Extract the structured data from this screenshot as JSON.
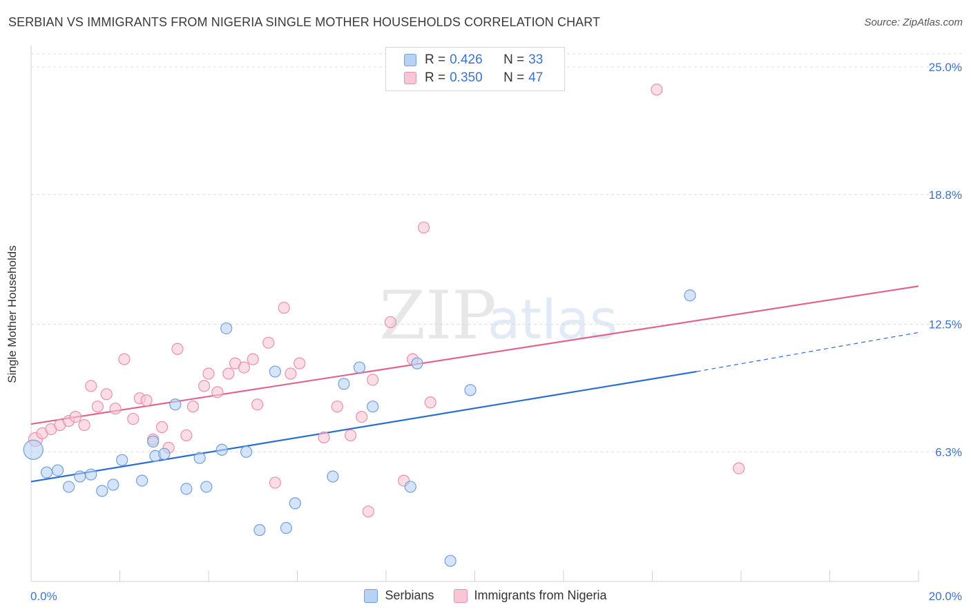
{
  "header": {
    "title": "SERBIAN VS IMMIGRANTS FROM NIGERIA SINGLE MOTHER HOUSEHOLDS CORRELATION CHART",
    "source": "Source: ZipAtlas.com"
  },
  "watermark": {
    "zip": "ZIP",
    "atlas": "atlas"
  },
  "legend_top": {
    "rows": [
      {
        "r_label": "R =",
        "r_value": "0.426",
        "n_label": "N =",
        "n_value": "33"
      },
      {
        "r_label": "R =",
        "r_value": "0.350",
        "n_label": "N =",
        "n_value": "47"
      }
    ]
  },
  "legend_bottom": {
    "items": [
      {
        "label": "Serbians"
      },
      {
        "label": "Immigrants from Nigeria"
      }
    ]
  },
  "colors": {
    "serbians_fill": "#b9d2f3",
    "serbians_stroke": "#6f9fdc",
    "serbians_line": "#2a6dd0",
    "nigeria_fill": "#f9c6d5",
    "nigeria_stroke": "#ea8fab",
    "nigeria_line": "#e2648e",
    "tick_label": "#3b73c8",
    "grid": "#dddddd"
  },
  "chart_data": {
    "type": "scatter",
    "title": "SERBIAN VS IMMIGRANTS FROM NIGERIA SINGLE MOTHER HOUSEHOLDS CORRELATION CHART",
    "xlabel": "",
    "ylabel": "Single Mother Households",
    "xlim": [
      0.0,
      20.0
    ],
    "ylim": [
      0.0,
      26.0
    ],
    "x_tick_labels": [
      "0.0%",
      "20.0%"
    ],
    "y_ticks": [
      6.3,
      12.5,
      18.8,
      25.0
    ],
    "y_tick_labels": [
      "6.3%",
      "12.5%",
      "18.8%",
      "25.0%"
    ],
    "grid": true,
    "series": [
      {
        "name": "Serbians",
        "r": 0.426,
        "n": 33,
        "points": [
          [
            0.05,
            6.4,
            14
          ],
          [
            0.35,
            5.3,
            8
          ],
          [
            0.6,
            5.4,
            8
          ],
          [
            0.85,
            4.6,
            8
          ],
          [
            1.1,
            5.1,
            8
          ],
          [
            1.35,
            5.2,
            8
          ],
          [
            1.6,
            4.4,
            8
          ],
          [
            1.85,
            4.7,
            8
          ],
          [
            2.05,
            5.9,
            8
          ],
          [
            2.5,
            4.9,
            8
          ],
          [
            2.75,
            6.8,
            8
          ],
          [
            2.8,
            6.1,
            8
          ],
          [
            3.0,
            6.2,
            8
          ],
          [
            3.25,
            8.6,
            8
          ],
          [
            3.5,
            4.5,
            8
          ],
          [
            3.8,
            6.0,
            8
          ],
          [
            3.95,
            4.6,
            8
          ],
          [
            4.3,
            6.4,
            8
          ],
          [
            4.4,
            12.3,
            8
          ],
          [
            4.85,
            6.3,
            8
          ],
          [
            5.15,
            2.5,
            8
          ],
          [
            5.5,
            10.2,
            8
          ],
          [
            5.75,
            2.6,
            8
          ],
          [
            5.95,
            3.8,
            8
          ],
          [
            6.8,
            5.1,
            8
          ],
          [
            7.05,
            9.6,
            8
          ],
          [
            7.4,
            10.4,
            8
          ],
          [
            7.7,
            8.5,
            8
          ],
          [
            8.55,
            4.6,
            8
          ],
          [
            8.7,
            10.6,
            8
          ],
          [
            9.9,
            9.3,
            8
          ],
          [
            9.45,
            1.0,
            8
          ],
          [
            14.85,
            13.9,
            8
          ]
        ],
        "trend": {
          "x0": 0.0,
          "y0": 4.85,
          "x1": 15.0,
          "y1": 10.2,
          "dash_x1": 20.0,
          "dash_y1": 12.1
        }
      },
      {
        "name": "Immigrants from Nigeria",
        "r": 0.35,
        "n": 47,
        "points": [
          [
            0.1,
            6.9,
            10
          ],
          [
            0.25,
            7.2,
            8
          ],
          [
            0.45,
            7.4,
            8
          ],
          [
            0.65,
            7.6,
            8
          ],
          [
            0.85,
            7.8,
            8
          ],
          [
            1.0,
            8.0,
            8
          ],
          [
            1.2,
            7.6,
            8
          ],
          [
            1.35,
            9.5,
            8
          ],
          [
            1.5,
            8.5,
            8
          ],
          [
            1.7,
            9.1,
            8
          ],
          [
            1.9,
            8.4,
            8
          ],
          [
            2.1,
            10.8,
            8
          ],
          [
            2.3,
            7.9,
            8
          ],
          [
            2.45,
            8.9,
            8
          ],
          [
            2.6,
            8.8,
            8
          ],
          [
            2.75,
            6.9,
            8
          ],
          [
            2.95,
            7.5,
            8
          ],
          [
            3.1,
            6.5,
            8
          ],
          [
            3.3,
            11.3,
            8
          ],
          [
            3.5,
            7.1,
            8
          ],
          [
            3.65,
            8.5,
            8
          ],
          [
            3.9,
            9.5,
            8
          ],
          [
            4.0,
            10.1,
            8
          ],
          [
            4.2,
            9.2,
            8
          ],
          [
            4.45,
            10.1,
            8
          ],
          [
            4.6,
            10.6,
            8
          ],
          [
            4.8,
            10.4,
            8
          ],
          [
            5.0,
            10.8,
            8
          ],
          [
            5.1,
            8.6,
            8
          ],
          [
            5.35,
            11.6,
            8
          ],
          [
            5.5,
            4.8,
            8
          ],
          [
            5.7,
            13.3,
            8
          ],
          [
            5.85,
            10.1,
            8
          ],
          [
            6.05,
            10.6,
            8
          ],
          [
            6.6,
            7.0,
            8
          ],
          [
            6.9,
            8.5,
            8
          ],
          [
            7.2,
            7.1,
            8
          ],
          [
            7.45,
            8.0,
            8
          ],
          [
            7.6,
            3.4,
            8
          ],
          [
            7.7,
            9.8,
            8
          ],
          [
            8.1,
            12.6,
            8
          ],
          [
            8.4,
            4.9,
            8
          ],
          [
            8.6,
            10.8,
            8
          ],
          [
            8.85,
            17.2,
            8
          ],
          [
            9.0,
            8.7,
            8
          ],
          [
            14.1,
            23.9,
            8
          ],
          [
            15.95,
            5.5,
            8
          ]
        ],
        "trend": {
          "x0": 0.0,
          "y0": 7.65,
          "x1": 20.0,
          "y1": 14.35
        }
      }
    ]
  }
}
